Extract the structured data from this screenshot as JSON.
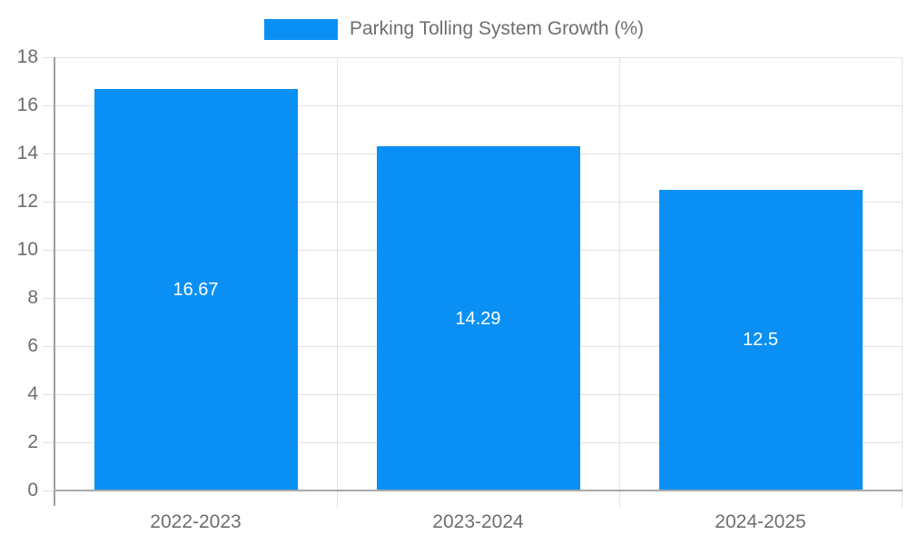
{
  "legend": {
    "label": "Parking Tolling System Growth (%)"
  },
  "chart_data": {
    "type": "bar",
    "title": "Parking Tolling System Growth (%)",
    "categories": [
      "2022-2023",
      "2023-2024",
      "2024-2025"
    ],
    "values": [
      16.67,
      14.29,
      12.5
    ],
    "bar_labels": [
      "16.67",
      "14.29",
      "12.5"
    ],
    "xlabel": "",
    "ylabel": "",
    "ylim": [
      0,
      18
    ],
    "yticks": [
      0,
      2,
      4,
      6,
      8,
      10,
      12,
      14,
      16,
      18
    ],
    "grid": true,
    "legend_position": "top-center",
    "bar_color": "#0a90f5",
    "bar_label_color": "#ffffff",
    "tick_label_color": "#6e6e6e"
  }
}
